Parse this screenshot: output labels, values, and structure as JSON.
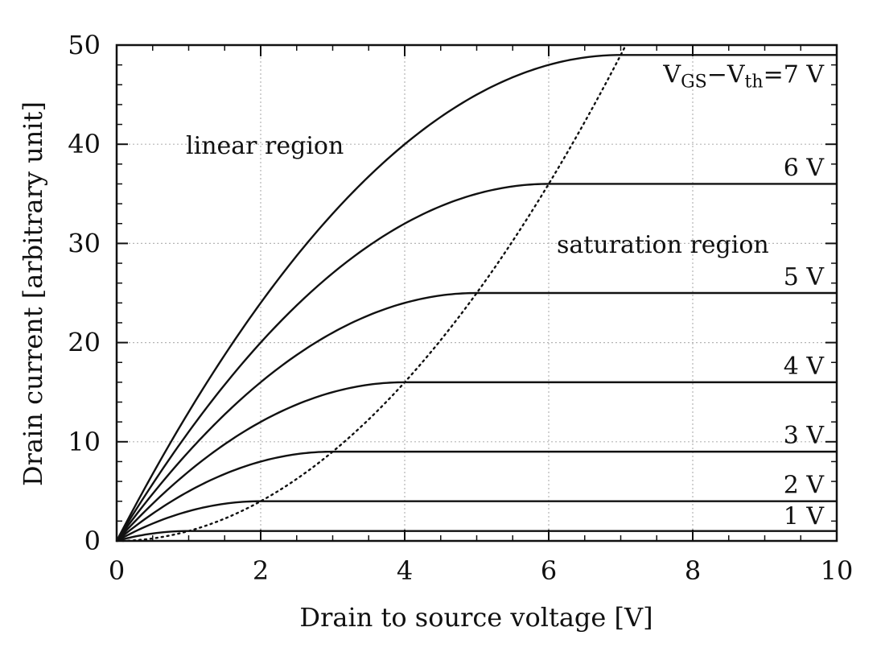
{
  "chart_data": {
    "type": "line",
    "xlabel": "Drain to source voltage [V]",
    "ylabel": "Drain current [arbitrary unit]",
    "xlim": [
      0,
      10
    ],
    "ylim": [
      0,
      50
    ],
    "xticks": [
      "0",
      "2",
      "4",
      "6",
      "8",
      "10"
    ],
    "yticks": [
      "0",
      "10",
      "20",
      "30",
      "40",
      "50"
    ],
    "grid": true,
    "series": [
      {
        "label": "1 V",
        "vov": 1
      },
      {
        "label": "2 V",
        "vov": 2
      },
      {
        "label": "3 V",
        "vov": 3
      },
      {
        "label": "4 V",
        "vov": 4
      },
      {
        "label": "5 V",
        "vov": 5
      },
      {
        "label": "6 V",
        "vov": 6
      },
      {
        "label_prefix": "V",
        "label_sub1": "GS",
        "label_mid": "−V",
        "label_sub2": "th",
        "label_suffix": "=7 V",
        "vov": 7
      }
    ],
    "boundary": {
      "style": "dotted",
      "relation": "I = Vds^2",
      "x_range": [
        0,
        7.07
      ]
    },
    "annotations": {
      "linear": "linear region",
      "saturation": "saturation region"
    }
  }
}
